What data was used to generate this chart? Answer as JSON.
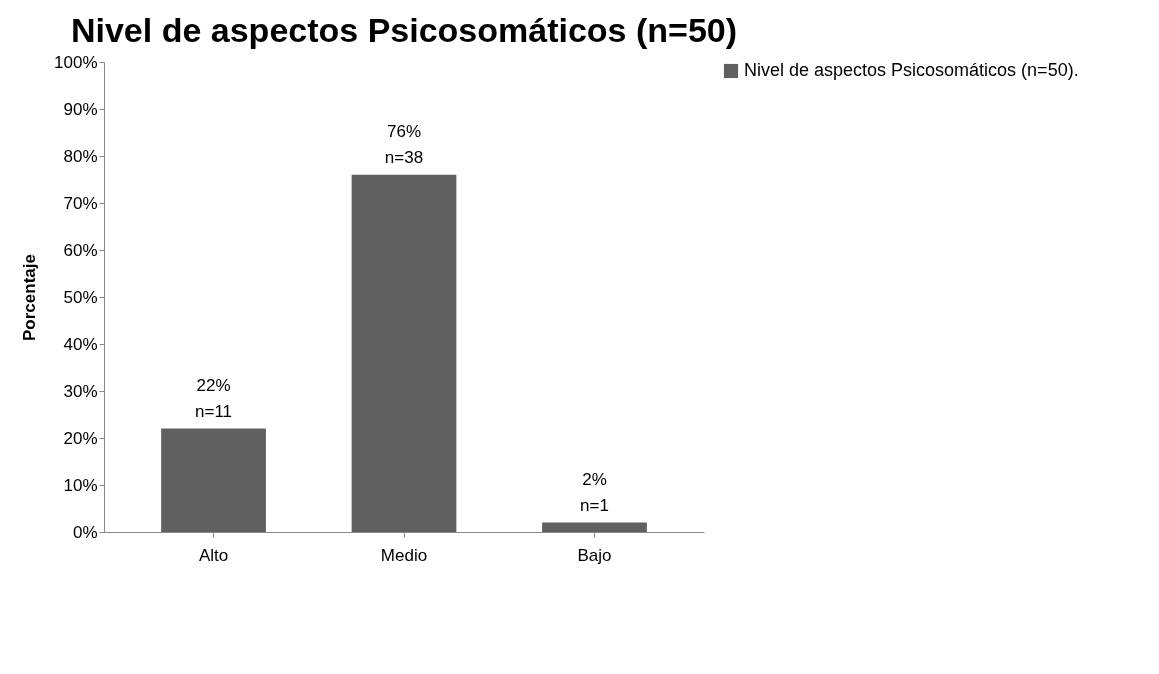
{
  "chart_data": {
    "type": "bar",
    "title": "Nivel de aspectos Psicosomáticos (n=50)",
    "ylabel": "Porcentaje",
    "categories": [
      "Alto",
      "Medio",
      "Bajo"
    ],
    "series": [
      {
        "name": "Nivel de aspectos Psicosomáticos (n=50).",
        "color": "#606060",
        "values": [
          22,
          76,
          2
        ],
        "value_labels": [
          "22%\nn=11",
          "76%\nn=38",
          "2%\nn=1"
        ]
      }
    ],
    "ylim": [
      0,
      100
    ],
    "yticks": [
      {
        "value": 0,
        "label": "0%"
      },
      {
        "value": 10,
        "label": "10%"
      },
      {
        "value": 20,
        "label": "20%"
      },
      {
        "value": 30,
        "label": "30%"
      },
      {
        "value": 40,
        "label": "40%"
      },
      {
        "value": 50,
        "label": "50%"
      },
      {
        "value": 60,
        "label": "60%"
      },
      {
        "value": 70,
        "label": "70%"
      },
      {
        "value": 80,
        "label": "80%"
      },
      {
        "value": 90,
        "label": "90%"
      },
      {
        "value": 100,
        "label": "100%"
      }
    ],
    "grid": false,
    "legend": "right"
  }
}
